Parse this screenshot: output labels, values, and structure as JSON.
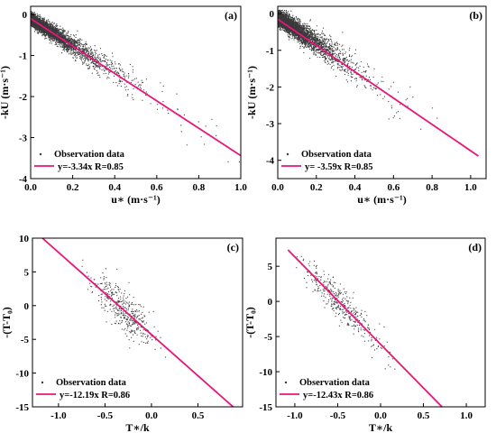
{
  "colors": {
    "fit": "#e8157a",
    "obs": "#3a3a3a",
    "axis": "#000000",
    "background": "#ffffff"
  },
  "chart_data": [
    {
      "type": "scatter",
      "panel_label": "(a)",
      "xlabel": "u∗ (m·s⁻¹)",
      "ylabel": "-kU (m·s⁻¹)",
      "xlim": [
        0,
        1.0
      ],
      "ylim": [
        -4,
        0.2
      ],
      "xticks": [
        0,
        0.2,
        0.4,
        0.6,
        0.8,
        1.0
      ],
      "xtick_labels": [
        "0.0",
        "0.2",
        "0.4",
        "0.6",
        "0.8",
        "1.0"
      ],
      "yticks": [
        0,
        -1,
        -2,
        -3,
        -4
      ],
      "ytick_labels": [
        "0",
        "-1",
        "-2",
        "-3",
        "-4"
      ],
      "legend_position": "bottom-left",
      "series": [
        {
          "name": "Observation data",
          "kind": "scatter",
          "n_points": 4000,
          "x_shape": 0.11,
          "x_max": 1.0,
          "slope": -3.34,
          "noise": 0.3
        },
        {
          "name": "y=-3.34x R=0.85",
          "kind": "line",
          "slope": -3.34,
          "intercept": -0.1,
          "x_range": [
            0,
            1.0
          ]
        }
      ]
    },
    {
      "type": "scatter",
      "panel_label": "(b)",
      "xlabel": "u∗ (m·s⁻¹)",
      "ylabel": "-kU (m·s⁻¹)",
      "xlim": [
        0,
        1.08
      ],
      "ylim": [
        -4.5,
        0.2
      ],
      "xticks": [
        0,
        0.2,
        0.4,
        0.6,
        0.8,
        1.0
      ],
      "xtick_labels": [
        "0.0",
        "0.2",
        "0.4",
        "0.6",
        "0.8",
        "1.0"
      ],
      "yticks": [
        0,
        -1,
        -2,
        -3,
        -4
      ],
      "ytick_labels": [
        "0",
        "-1",
        "-2",
        "-3",
        "-4"
      ],
      "legend_position": "bottom-left",
      "series": [
        {
          "name": "Observation data",
          "kind": "scatter",
          "n_points": 4000,
          "x_shape": 0.11,
          "x_max": 1.08,
          "slope": -3.59,
          "noise": 0.42
        },
        {
          "name": "y= -3.59x R=0.85",
          "kind": "line",
          "slope": -3.59,
          "intercept": -0.15,
          "x_range": [
            0,
            1.04
          ]
        }
      ]
    },
    {
      "type": "scatter",
      "panel_label": "(c)",
      "xlabel": "T∗/k",
      "ylabel": "-(T-T₀)",
      "xlim": [
        -1.28,
        0.98
      ],
      "ylim": [
        -15,
        10
      ],
      "xticks": [
        -1.0,
        -0.5,
        0.0,
        0.5
      ],
      "xtick_labels": [
        "-1.0",
        "-0.5",
        "0.0",
        "0.5"
      ],
      "yticks": [
        10,
        5,
        0,
        -5,
        -10,
        -15
      ],
      "ytick_labels": [
        "10",
        "5",
        "0",
        "-5",
        "-10",
        "-15"
      ],
      "legend_position": "bottom-left",
      "series": [
        {
          "name": "Observation data",
          "kind": "scatter",
          "n_points": 420,
          "x_center": -0.28,
          "x_spread": 0.17,
          "slope": -12.19,
          "noise": 1.5
        },
        {
          "name": "y=-12.19x R=0.86",
          "kind": "line",
          "slope": -12.19,
          "intercept": -4.3,
          "x_range": [
            -1.18,
            0.88
          ]
        }
      ]
    },
    {
      "type": "scatter",
      "panel_label": "(d)",
      "xlabel": "T∗/k",
      "ylabel": "-(T-T₀)",
      "xlim": [
        -1.22,
        1.22
      ],
      "ylim": [
        -15,
        9
      ],
      "xticks": [
        -1.0,
        -0.5,
        0.0,
        0.5,
        1.0
      ],
      "xtick_labels": [
        "-1.0",
        "-0.5",
        "0.0",
        "0.5",
        "1.0"
      ],
      "yticks": [
        5,
        0,
        -5,
        -10,
        -15
      ],
      "ytick_labels": [
        "5",
        "0",
        "-5",
        "-10",
        "-15"
      ],
      "legend_position": "bottom-left",
      "series": [
        {
          "name": "Observation data",
          "kind": "scatter",
          "n_points": 380,
          "x_center": -0.45,
          "x_spread": 0.24,
          "slope": -12.43,
          "noise": 1.3
        },
        {
          "name": "y=-12.43x R=0.86",
          "kind": "line",
          "slope": -12.43,
          "intercept": -6.1,
          "x_range": [
            -1.08,
            0.74
          ]
        }
      ]
    }
  ]
}
